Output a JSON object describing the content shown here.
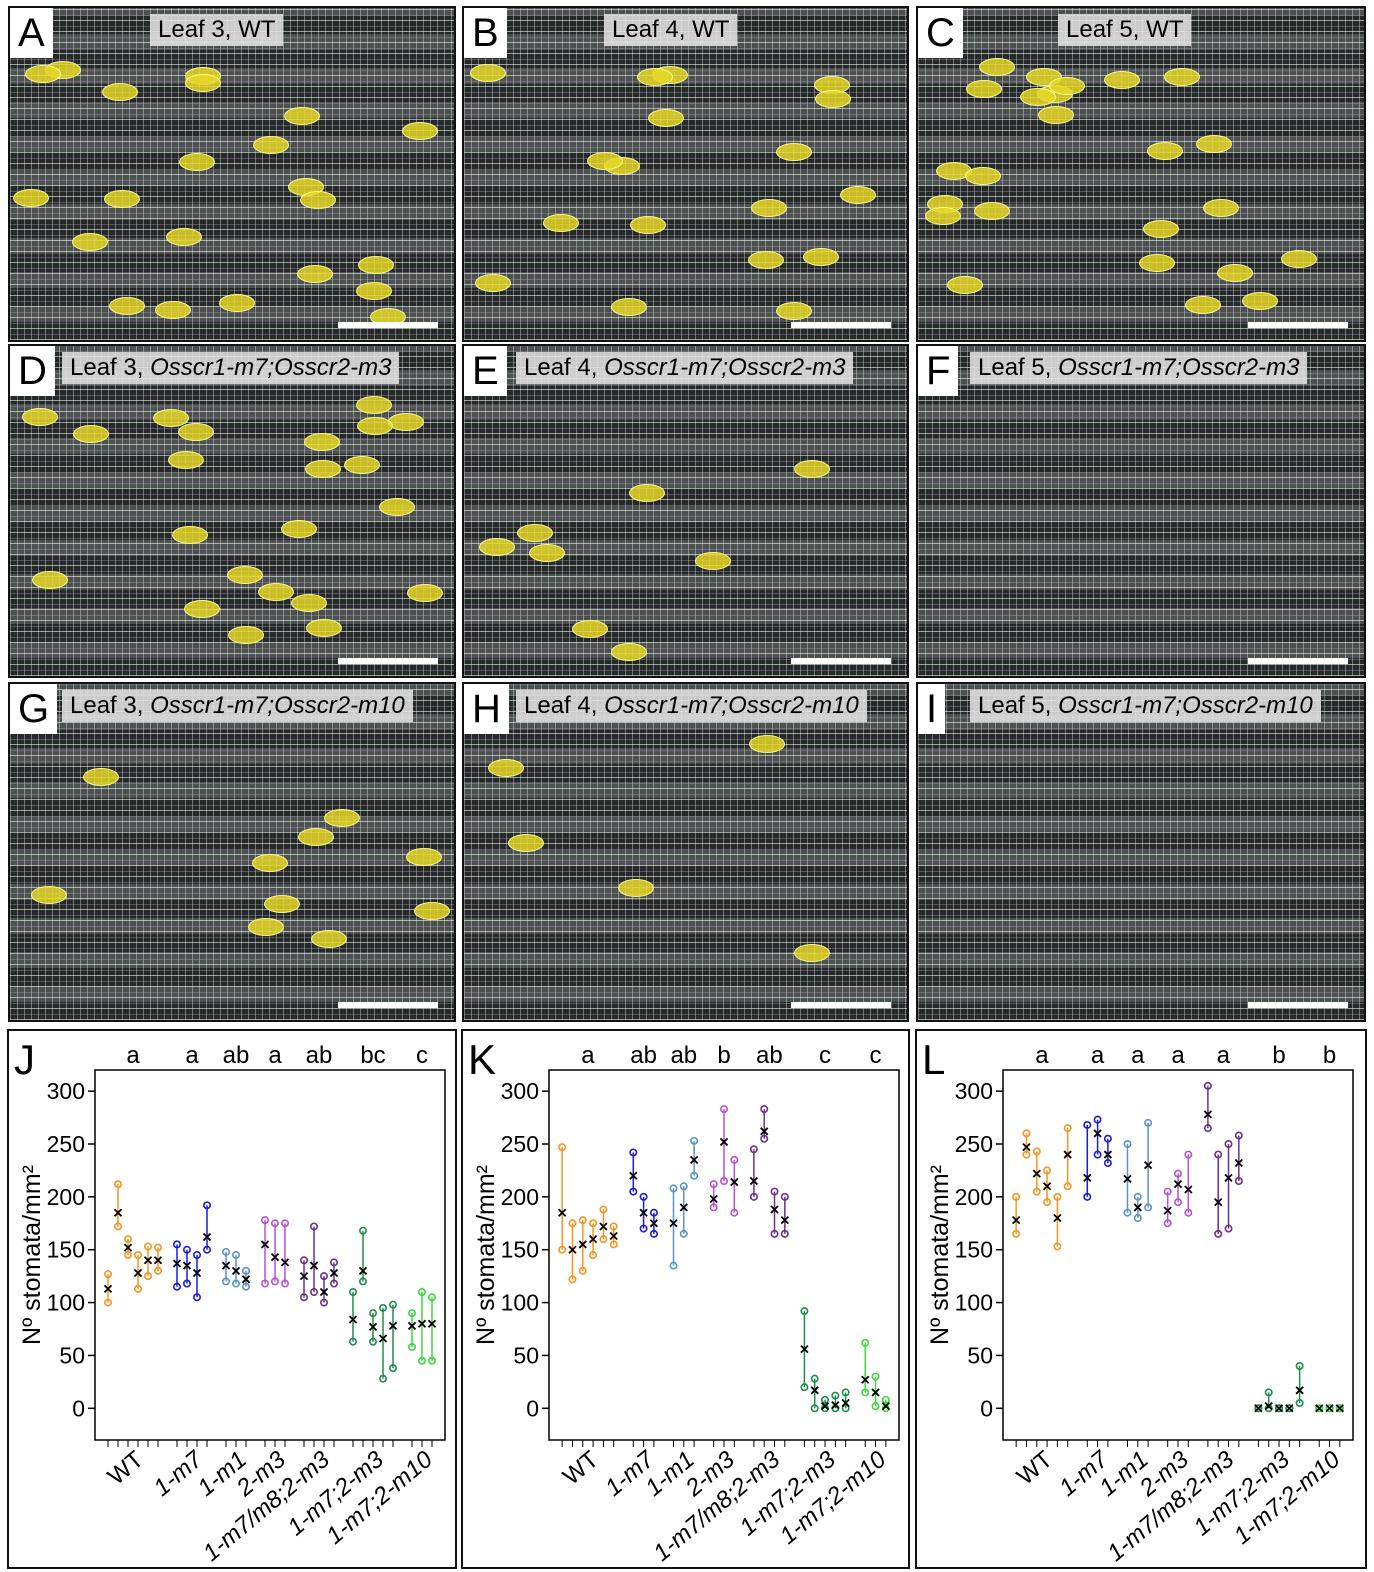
{
  "image_panels": [
    {
      "letter": "A",
      "leaf": "Leaf 3,",
      "genotype": "WT",
      "italic": false
    },
    {
      "letter": "B",
      "leaf": "Leaf 4,",
      "genotype": "WT",
      "italic": false
    },
    {
      "letter": "C",
      "leaf": "Leaf 5,",
      "genotype": "WT",
      "italic": false
    },
    {
      "letter": "D",
      "leaf": "Leaf 3,",
      "genotype": "Osscr1-m7;Osscr2-m3",
      "italic": true
    },
    {
      "letter": "E",
      "leaf": "Leaf 4,",
      "genotype": "Osscr1-m7;Osscr2-m3",
      "italic": true
    },
    {
      "letter": "F",
      "leaf": "Leaf 5,",
      "genotype": "Osscr1-m7;Osscr2-m3",
      "italic": true
    },
    {
      "letter": "G",
      "leaf": "Leaf 3,",
      "genotype": "Osscr1-m7;Osscr2-m10",
      "italic": true
    },
    {
      "letter": "H",
      "leaf": "Leaf 4,",
      "genotype": "Osscr1-m7;Osscr2-m10",
      "italic": true
    },
    {
      "letter": "I",
      "leaf": "Leaf 5,",
      "genotype": "Osscr1-m7;Osscr2-m10",
      "italic": true
    }
  ],
  "chart_data": [
    {
      "type": "range",
      "panel": "J",
      "y_label": "Nº stomata/mm²",
      "ylim": [
        -30,
        320
      ],
      "yticks": [
        0,
        50,
        100,
        150,
        200,
        250,
        300
      ],
      "letters": [
        "a",
        "a",
        "ab",
        "a",
        "ab",
        "bc",
        "c"
      ],
      "series": [
        {
          "name": "WT",
          "italic": false,
          "color": "#f7931e",
          "values": [
            113,
            185,
            152,
            128,
            140,
            140
          ],
          "mins": [
            100,
            172,
            145,
            113,
            125,
            130
          ],
          "maxs": [
            127,
            212,
            160,
            145,
            153,
            152
          ]
        },
        {
          "name": "1-m7",
          "italic": true,
          "color": "#1a1adb",
          "values": [
            137,
            135,
            128,
            162
          ],
          "mins": [
            115,
            118,
            105,
            150
          ],
          "maxs": [
            155,
            150,
            145,
            192
          ]
        },
        {
          "name": "1-m1",
          "italic": true,
          "color": "#5b93c7",
          "values": [
            135,
            130,
            122
          ],
          "mins": [
            120,
            118,
            115
          ],
          "maxs": [
            148,
            145,
            130
          ]
        },
        {
          "name": "2-m3",
          "italic": true,
          "color": "#b84fd8",
          "values": [
            155,
            143,
            138
          ],
          "mins": [
            118,
            120,
            118
          ],
          "maxs": [
            178,
            175,
            175
          ]
        },
        {
          "name": "1-m7/m8;2-m3",
          "italic": true,
          "color": "#6b2f8e",
          "values": [
            125,
            135,
            110,
            128
          ],
          "mins": [
            105,
            110,
            100,
            118
          ],
          "maxs": [
            140,
            172,
            125,
            138
          ]
        },
        {
          "name": "1-m7;2-m3",
          "italic": true,
          "color": "#1e8c4c",
          "values": [
            84,
            130,
            77,
            66,
            78
          ],
          "mins": [
            63,
            120,
            63,
            28,
            38
          ],
          "maxs": [
            110,
            168,
            90,
            95,
            98
          ]
        },
        {
          "name": "1-m7;2-m10",
          "italic": true,
          "color": "#3ad93a",
          "values": [
            78,
            80,
            80
          ],
          "mins": [
            58,
            45,
            45
          ],
          "maxs": [
            90,
            110,
            105
          ]
        }
      ]
    },
    {
      "type": "range",
      "panel": "K",
      "y_label": "Nº stomata/mm²",
      "ylim": [
        -30,
        320
      ],
      "yticks": [
        0,
        50,
        100,
        150,
        200,
        250,
        300
      ],
      "letters": [
        "a",
        "ab",
        "ab",
        "b",
        "ab",
        "c",
        "c"
      ],
      "series": [
        {
          "name": "WT",
          "italic": false,
          "color": "#f7931e",
          "values": [
            185,
            150,
            155,
            160,
            172,
            163
          ],
          "mins": [
            150,
            122,
            130,
            145,
            160,
            155
          ],
          "maxs": [
            247,
            175,
            178,
            175,
            188,
            172
          ]
        },
        {
          "name": "1-m7",
          "italic": true,
          "color": "#1a1adb",
          "values": [
            220,
            185,
            175
          ],
          "mins": [
            205,
            170,
            165
          ],
          "maxs": [
            242,
            200,
            185
          ]
        },
        {
          "name": "1-m1",
          "italic": true,
          "color": "#5b93c7",
          "values": [
            175,
            190,
            235
          ],
          "mins": [
            135,
            165,
            220
          ],
          "maxs": [
            208,
            210,
            253
          ]
        },
        {
          "name": "2-m3",
          "italic": true,
          "color": "#b84fd8",
          "values": [
            198,
            252,
            214
          ],
          "mins": [
            190,
            215,
            185
          ],
          "maxs": [
            212,
            283,
            235
          ]
        },
        {
          "name": "1-m7/m8;2-m3",
          "italic": true,
          "color": "#6b2f8e",
          "values": [
            215,
            262,
            188,
            178
          ],
          "mins": [
            200,
            255,
            165,
            165
          ],
          "maxs": [
            245,
            283,
            205,
            200
          ]
        },
        {
          "name": "1-m7;2-m3",
          "italic": true,
          "color": "#1e8c4c",
          "values": [
            56,
            17,
            2,
            3,
            5
          ],
          "mins": [
            20,
            0,
            0,
            0,
            0
          ],
          "maxs": [
            92,
            28,
            8,
            12,
            15
          ]
        },
        {
          "name": "1-m7;2-m10",
          "italic": true,
          "color": "#3ad93a",
          "values": [
            27,
            15,
            2
          ],
          "mins": [
            15,
            2,
            0
          ],
          "maxs": [
            62,
            30,
            8
          ]
        }
      ]
    },
    {
      "type": "range",
      "panel": "L",
      "y_label": "Nº stomata/mm²",
      "ylim": [
        -30,
        320
      ],
      "yticks": [
        0,
        50,
        100,
        150,
        200,
        250,
        300
      ],
      "letters": [
        "a",
        "a",
        "a",
        "a",
        "a",
        "b",
        "b"
      ],
      "series": [
        {
          "name": "WT",
          "italic": false,
          "color": "#f7931e",
          "values": [
            178,
            247,
            222,
            210,
            180,
            240
          ],
          "mins": [
            165,
            240,
            205,
            195,
            153,
            210
          ],
          "maxs": [
            200,
            260,
            243,
            225,
            200,
            265
          ]
        },
        {
          "name": "1-m7",
          "italic": true,
          "color": "#1a1adb",
          "values": [
            218,
            260,
            240
          ],
          "mins": [
            200,
            240,
            232
          ],
          "maxs": [
            268,
            273,
            255
          ]
        },
        {
          "name": "1-m1",
          "italic": true,
          "color": "#5b93c7",
          "values": [
            217,
            190,
            230
          ],
          "mins": [
            185,
            180,
            190
          ],
          "maxs": [
            250,
            200,
            270
          ]
        },
        {
          "name": "2-m3",
          "italic": true,
          "color": "#b84fd8",
          "values": [
            187,
            212,
            207
          ],
          "mins": [
            175,
            195,
            185
          ],
          "maxs": [
            205,
            222,
            240
          ]
        },
        {
          "name": "1-m7/m8;2-m3",
          "italic": true,
          "color": "#6b2f8e",
          "values": [
            278,
            195,
            218,
            232
          ],
          "mins": [
            265,
            165,
            170,
            215
          ],
          "maxs": [
            305,
            240,
            250,
            258
          ]
        },
        {
          "name": "1-m7;2-m3",
          "italic": true,
          "color": "#1e8c4c",
          "values": [
            0,
            2,
            0,
            0,
            17
          ],
          "mins": [
            0,
            0,
            0,
            0,
            5
          ],
          "maxs": [
            0,
            15,
            0,
            0,
            40
          ]
        },
        {
          "name": "1-m7;2-m10",
          "italic": true,
          "color": "#3ad93a",
          "values": [
            0,
            0,
            0
          ],
          "mins": [
            0,
            0,
            0
          ],
          "maxs": [
            0,
            0,
            0
          ]
        }
      ]
    }
  ]
}
